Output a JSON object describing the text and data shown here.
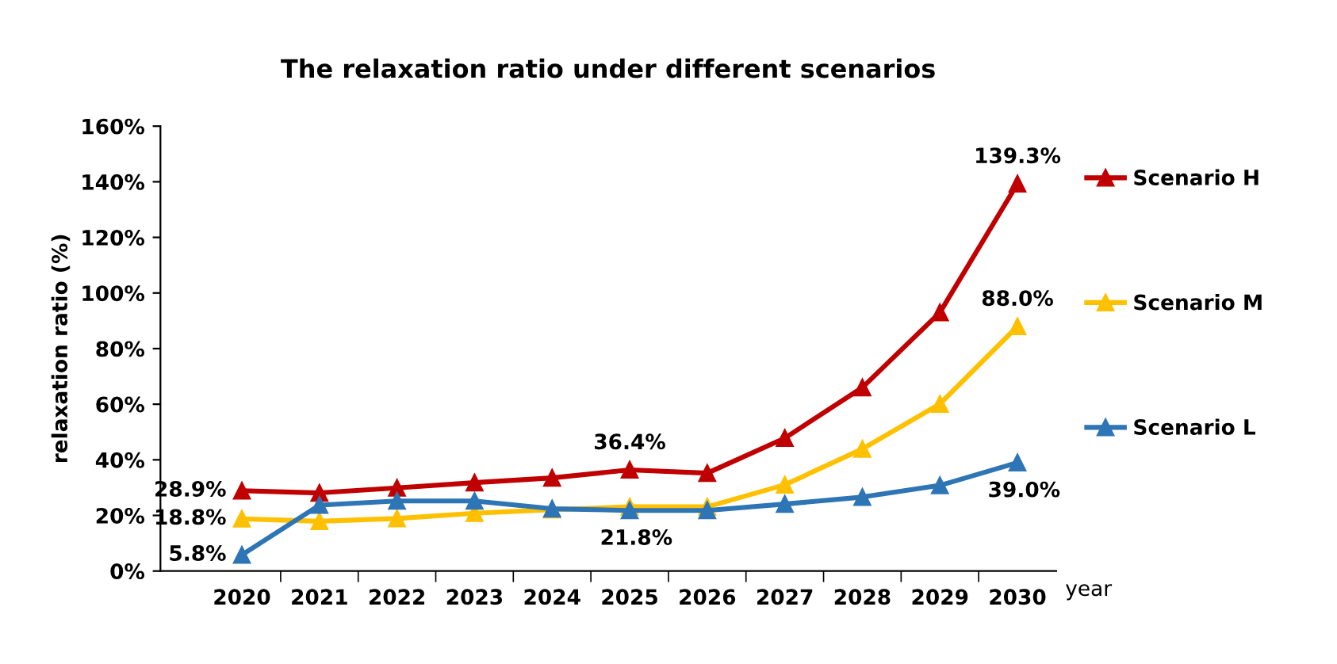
{
  "chart_data": {
    "type": "line",
    "title": "The relaxation ratio under different scenarios",
    "xlabel": "year",
    "ylabel": "relaxation ratio (%)",
    "categories": [
      "2020",
      "2021",
      "2022",
      "2023",
      "2024",
      "2025",
      "2026",
      "2027",
      "2028",
      "2029",
      "2030"
    ],
    "series": [
      {
        "name": "Scenario H",
        "color": "#c00000",
        "values": [
          28.9,
          28.1,
          29.9,
          31.8,
          33.5,
          36.4,
          35.2,
          47.8,
          66.0,
          93.0,
          139.3
        ],
        "value_labels": [
          "28.9%",
          null,
          null,
          null,
          null,
          "36.4%",
          null,
          null,
          null,
          null,
          "139.3%"
        ]
      },
      {
        "name": "Scenario M",
        "color": "#ffc000",
        "values": [
          18.8,
          17.9,
          18.9,
          20.8,
          22.1,
          23.1,
          23.1,
          31.0,
          43.9,
          60.1,
          88.0
        ],
        "value_labels": [
          "18.8%",
          null,
          null,
          null,
          null,
          null,
          null,
          null,
          null,
          null,
          "88.0%"
        ]
      },
      {
        "name": "Scenario L",
        "color": "#2e75b6",
        "values": [
          5.8,
          23.7,
          25.2,
          25.2,
          22.4,
          21.8,
          21.8,
          24.1,
          26.6,
          30.8,
          39.0
        ],
        "value_labels": [
          "5.8%",
          null,
          null,
          null,
          null,
          "21.8%",
          null,
          null,
          null,
          null,
          "39.0%"
        ]
      }
    ],
    "ylim": [
      0,
      160
    ],
    "yticks": [
      {
        "value": 0,
        "label": "0%"
      },
      {
        "value": 20,
        "label": "20%"
      },
      {
        "value": 40,
        "label": "40%"
      },
      {
        "value": 60,
        "label": "60%"
      },
      {
        "value": 80,
        "label": "80%"
      },
      {
        "value": 100,
        "label": "100%"
      },
      {
        "value": 120,
        "label": "120%"
      },
      {
        "value": 140,
        "label": "140%"
      },
      {
        "value": 160,
        "label": "160%"
      }
    ],
    "grid": false,
    "legend": "right",
    "marker": "triangle",
    "line_style": "solid"
  }
}
